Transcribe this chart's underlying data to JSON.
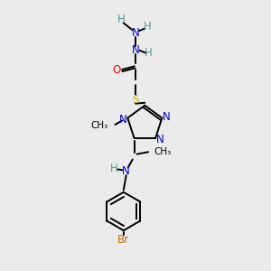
{
  "bg_color": "#ebebeb",
  "atom_colors": {
    "C": "#000000",
    "N": "#0000cc",
    "O": "#ff0000",
    "S": "#ccaa00",
    "Br": "#cc6600",
    "H": "#4d9999"
  },
  "bond_color": "#000000",
  "lw": 1.4
}
